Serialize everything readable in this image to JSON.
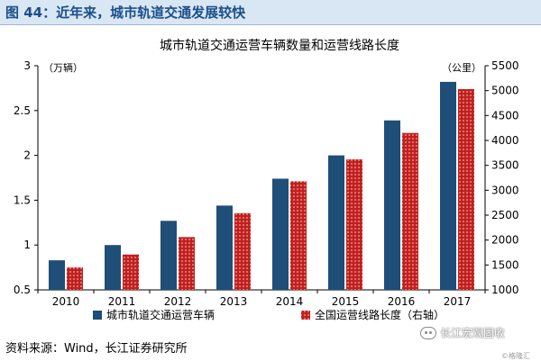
{
  "header": {
    "figure_title": "图 44：近年来，城市轨道交通发展较快"
  },
  "footer": {
    "source": "资料来源：Wind，长江证券研究所"
  },
  "watermark": {
    "text": "长江宏观固收",
    "small": "©格隆汇"
  },
  "colors": {
    "bar_left": "#1f4e79",
    "bar_right": "#c0201f",
    "dot": "#f4a9a0",
    "header_bg": "#d9e6f3",
    "header_text": "#1a4f8a"
  },
  "chart_data": {
    "type": "bar",
    "title": "城市轨道交通运营车辆数量和运营线路长度",
    "categories": [
      "2010",
      "2011",
      "2012",
      "2013",
      "2014",
      "2015",
      "2016",
      "2017"
    ],
    "y_left": {
      "unit": "（万辆）",
      "range": [
        0.5,
        3
      ],
      "ticks": [
        "0.5",
        "1",
        "1.5",
        "2",
        "2.5",
        "3"
      ]
    },
    "y_right": {
      "unit": "（公里）",
      "range": [
        1000,
        5500
      ],
      "ticks": [
        "1000",
        "1500",
        "2000",
        "2500",
        "3000",
        "3500",
        "4000",
        "4500",
        "5000",
        "5500"
      ]
    },
    "series": [
      {
        "name": "城市轨道交通运营车辆",
        "axis": "left",
        "values": [
          0.83,
          1.0,
          1.27,
          1.44,
          1.74,
          2.0,
          2.39,
          2.82
        ]
      },
      {
        "name": "全国运营线路长度（右轴）",
        "axis": "right",
        "values": [
          1450,
          1710,
          2060,
          2540,
          3180,
          3620,
          4150,
          5030
        ]
      }
    ],
    "grid": false,
    "legend": "bottom"
  }
}
